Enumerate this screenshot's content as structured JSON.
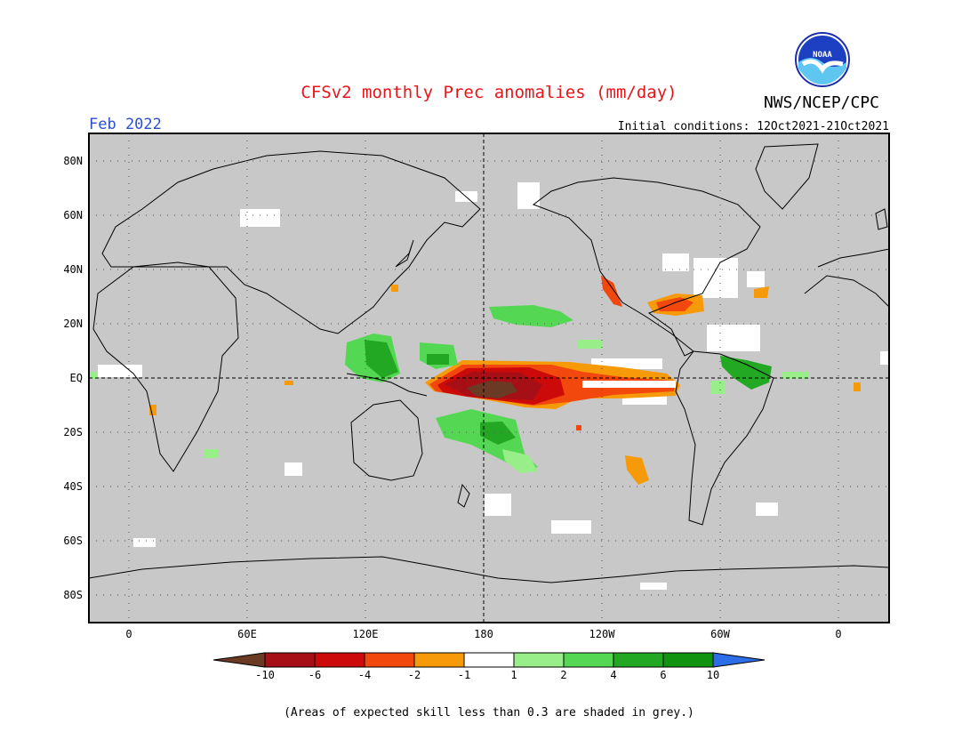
{
  "header": {
    "title": "CFSv2 monthly Prec anomalies (mm/day)",
    "agency": "NWS/NCEP/CPC",
    "logo_text": "NOAA",
    "month": "Feb 2022",
    "initial_conditions": "Initial conditions: 12Oct2021-21Oct2021"
  },
  "map": {
    "lat_labels": [
      "80N",
      "60N",
      "40N",
      "20N",
      "EQ",
      "20S",
      "40S",
      "60S",
      "80S"
    ],
    "lon_labels": [
      "0",
      "60E",
      "120E",
      "180",
      "120W",
      "60W",
      "0"
    ],
    "land_color": "#c8c8c8",
    "coast_color": "#000000"
  },
  "legend": {
    "tick_labels": [
      "-10",
      "-6",
      "-4",
      "-2",
      "-1",
      "1",
      "2",
      "4",
      "6",
      "10"
    ],
    "colors": [
      "#6b3a24",
      "#a50f15",
      "#cc0a0a",
      "#f2470d",
      "#f79a0a",
      "#ffffff",
      "#98ee88",
      "#54d854",
      "#22a822",
      "#109410",
      "#2c6ee8"
    ]
  },
  "footnote": "(Areas of expected skill less than 0.3 are shaded in grey.)"
}
